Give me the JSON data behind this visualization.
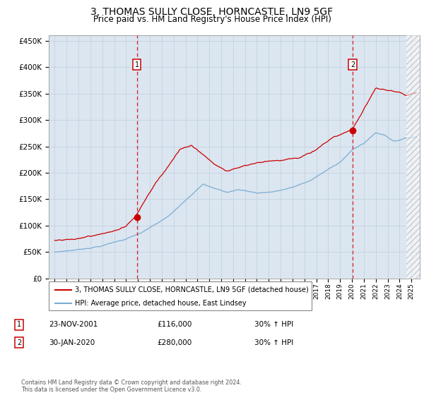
{
  "title": "3, THOMAS SULLY CLOSE, HORNCASTLE, LN9 5GF",
  "subtitle": "Price paid vs. HM Land Registry's House Price Index (HPI)",
  "title_fontsize": 10,
  "subtitle_fontsize": 8.5,
  "background_color": "#dce6f0",
  "plot_bg_color": "#dce6f0",
  "hpi_color": "#7aadd4",
  "price_color": "#cc0000",
  "ylim": [
    0,
    460000
  ],
  "yticks": [
    0,
    50000,
    100000,
    150000,
    200000,
    250000,
    300000,
    350000,
    400000,
    450000
  ],
  "legend_label_price": "3, THOMAS SULLY CLOSE, HORNCASTLE, LN9 5GF (detached house)",
  "legend_label_hpi": "HPI: Average price, detached house, East Lindsey",
  "annotation1_date": "23-NOV-2001",
  "annotation1_price": "£116,000",
  "annotation1_hpi": "30% ↑ HPI",
  "annotation2_date": "30-JAN-2020",
  "annotation2_price": "£280,000",
  "annotation2_hpi": "30% ↑ HPI",
  "footer": "Contains HM Land Registry data © Crown copyright and database right 2024.\nThis data is licensed under the Open Government Licence v3.0.",
  "vline1_x": 2001.9,
  "vline2_x": 2020.07,
  "marker1_x": 2001.9,
  "marker1_y": 116000,
  "marker2_x": 2020.07,
  "marker2_y": 280000,
  "xmin": 1994.5,
  "xmax": 2025.7
}
